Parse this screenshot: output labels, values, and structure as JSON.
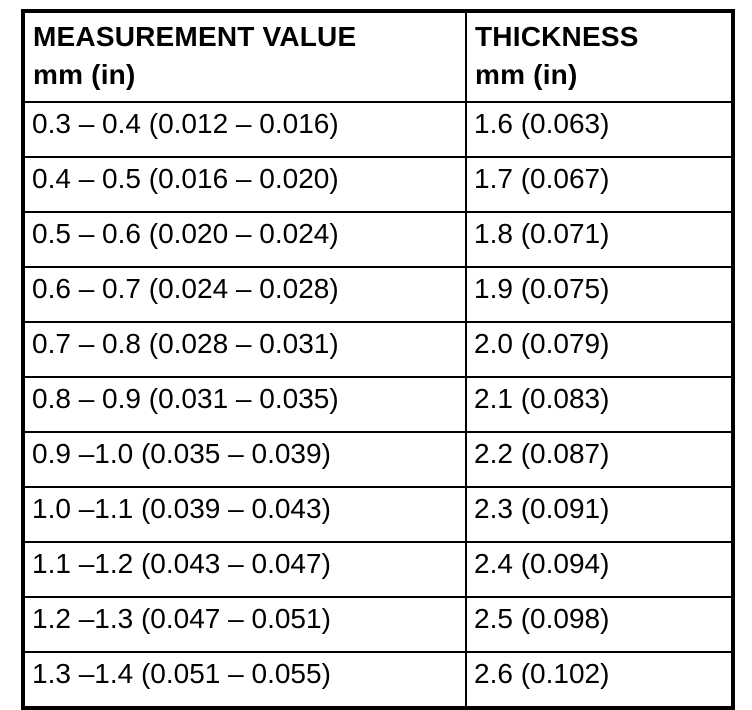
{
  "accent_colors": {
    "border": "#000000",
    "text": "#000000",
    "background": "#ffffff"
  },
  "table": {
    "columns": [
      {
        "title": "MEASUREMENT VALUE",
        "unit": "mm (in)"
      },
      {
        "title": "THICKNESS",
        "unit": "mm (in)"
      }
    ],
    "rows": [
      {
        "measurement": "0.3 – 0.4 (0.012 – 0.016)",
        "thickness": "1.6 (0.063)"
      },
      {
        "measurement": "0.4 – 0.5 (0.016 – 0.020)",
        "thickness": "1.7 (0.067)"
      },
      {
        "measurement": "0.5 – 0.6 (0.020 – 0.024)",
        "thickness": "1.8 (0.071)"
      },
      {
        "measurement": "0.6 – 0.7 (0.024 – 0.028)",
        "thickness": "1.9 (0.075)"
      },
      {
        "measurement": "0.7 – 0.8 (0.028 – 0.031)",
        "thickness": "2.0 (0.079)"
      },
      {
        "measurement": "0.8 – 0.9 (0.031 – 0.035)",
        "thickness": "2.1 (0.083)"
      },
      {
        "measurement": "0.9 –1.0 (0.035 – 0.039)",
        "thickness": "2.2 (0.087)"
      },
      {
        "measurement": "1.0 –1.1 (0.039 – 0.043)",
        "thickness": "2.3 (0.091)"
      },
      {
        "measurement": "1.1 –1.2 (0.043 – 0.047)",
        "thickness": "2.4 (0.094)"
      },
      {
        "measurement": "1.2 –1.3 (0.047 – 0.051)",
        "thickness": "2.5 (0.098)"
      },
      {
        "measurement": "1.3 –1.4 (0.051 – 0.055)",
        "thickness": "2.6 (0.102)"
      }
    ]
  }
}
